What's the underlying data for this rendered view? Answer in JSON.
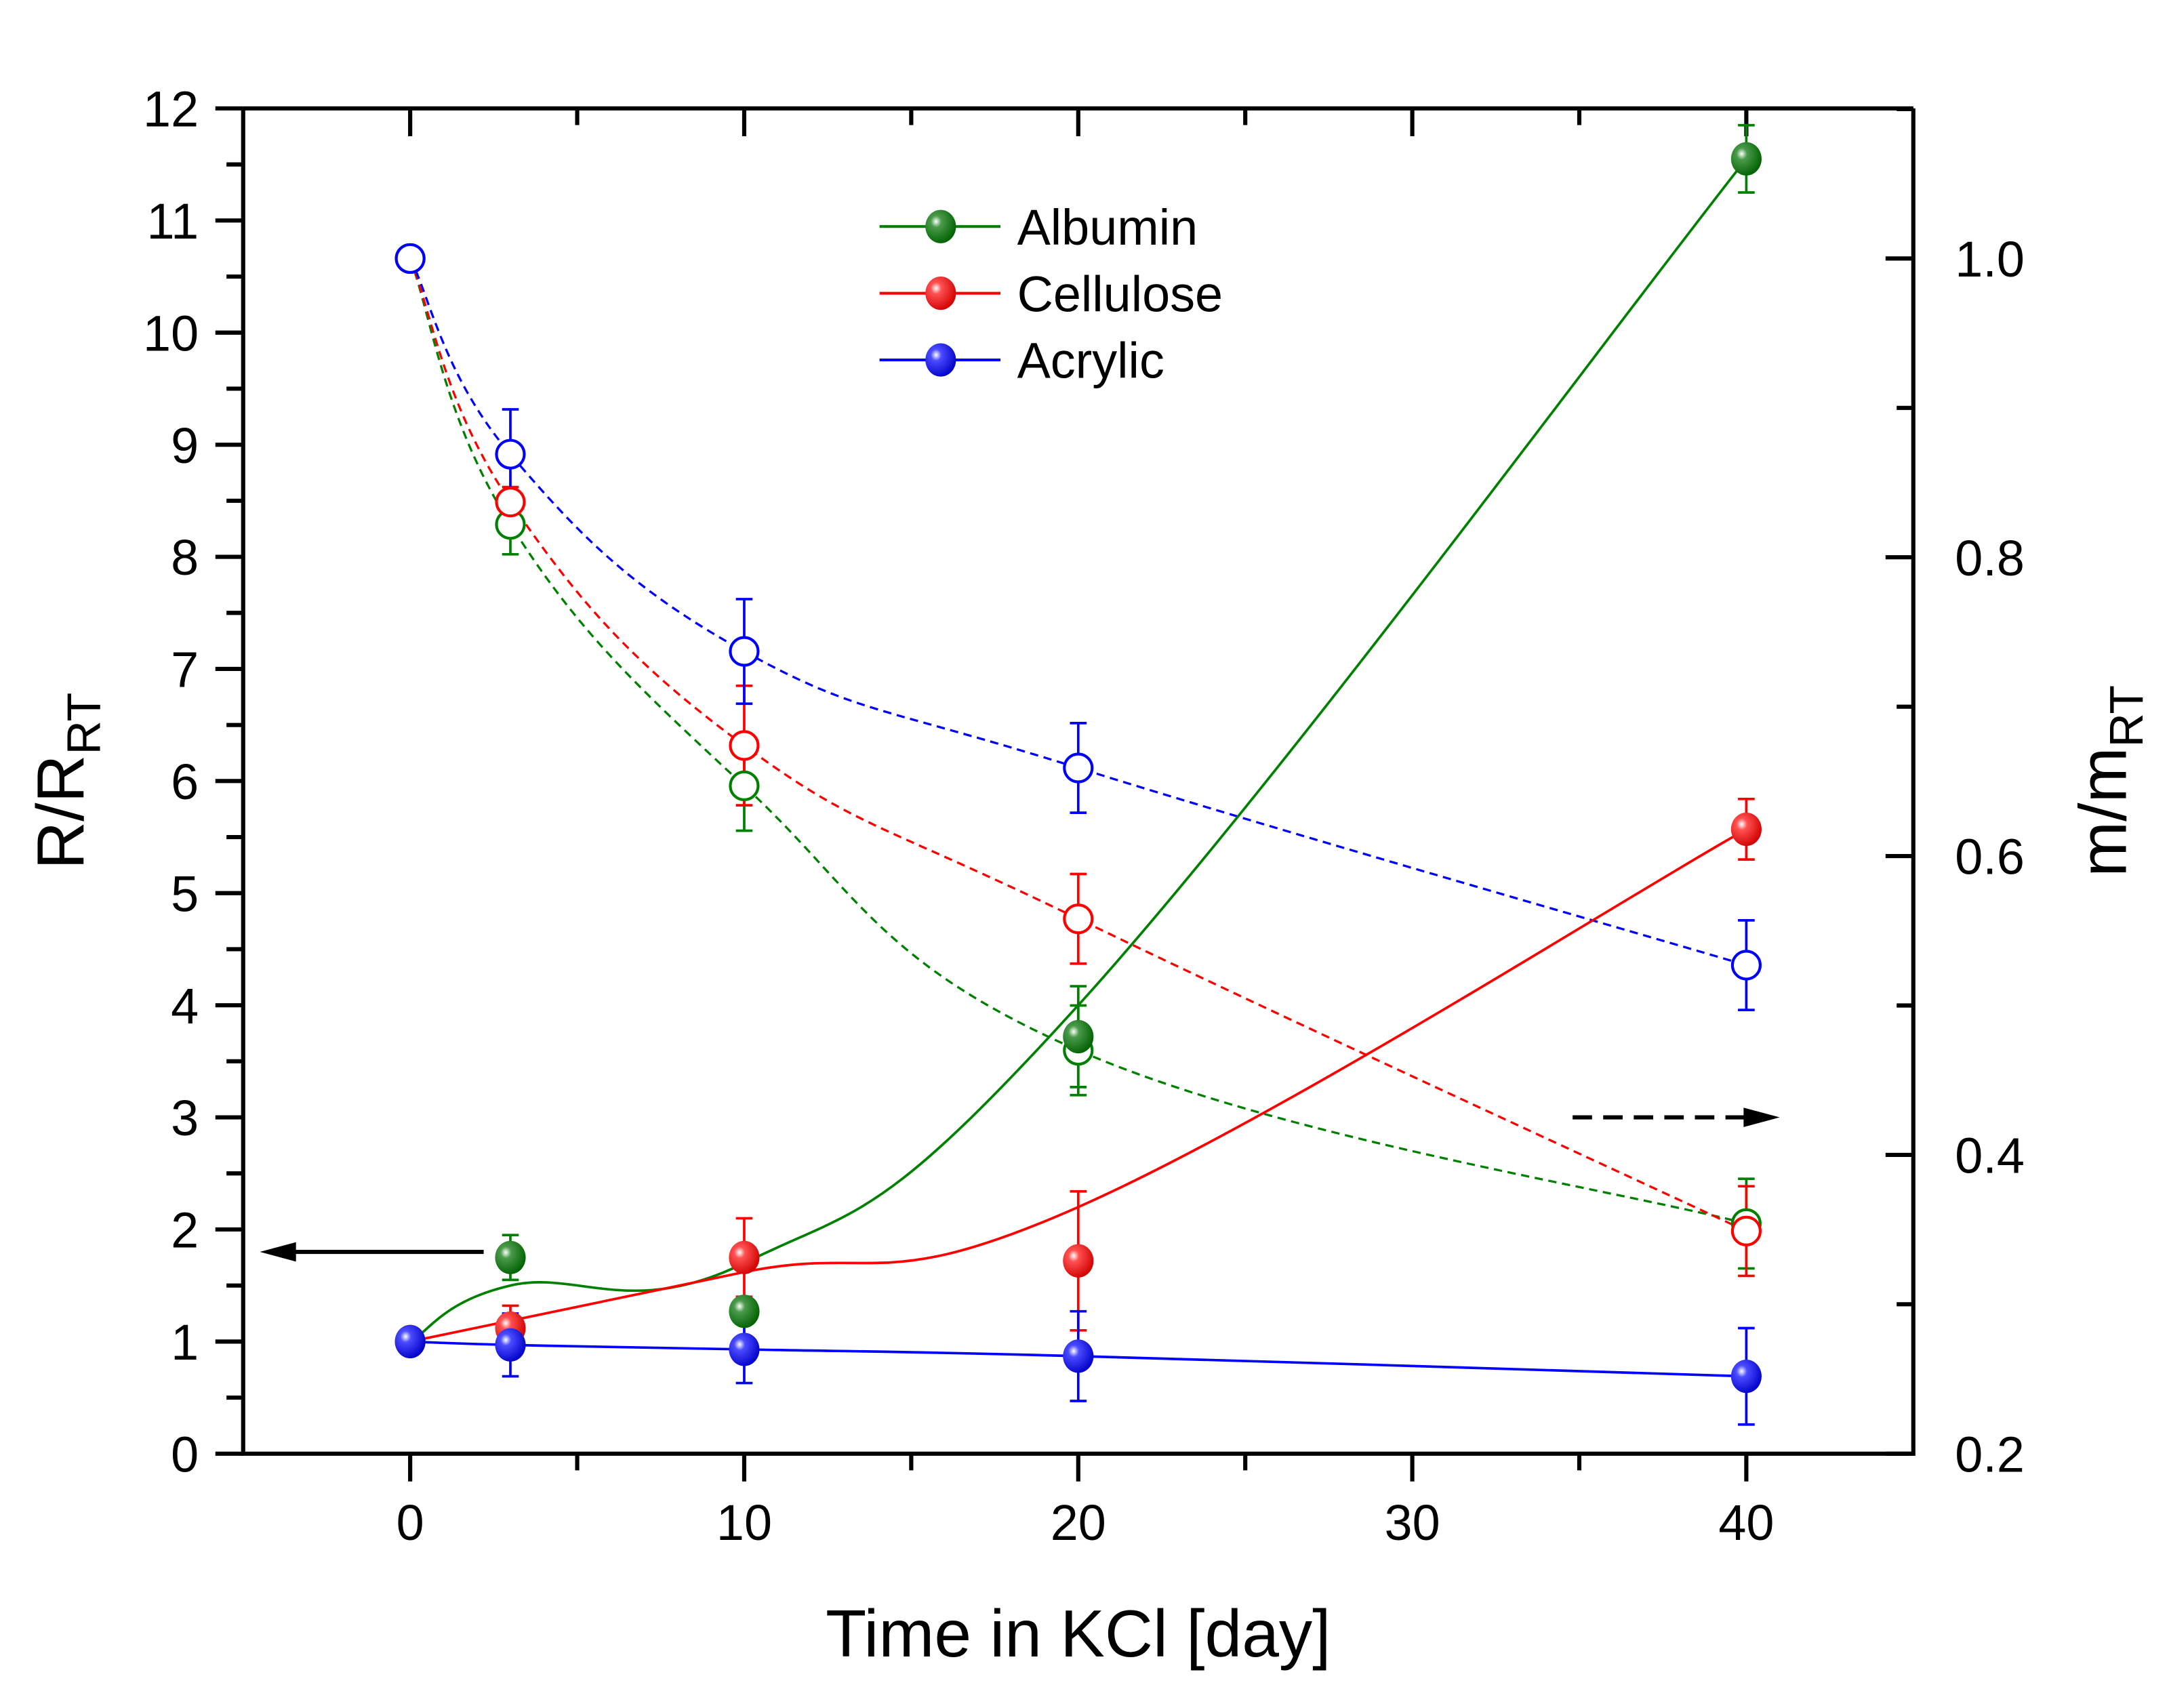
{
  "chart_data": {
    "type": "scatter",
    "xlabel": "Time in KCl [day]",
    "ylabel_left": {
      "main": "R/R",
      "sub": "RT"
    },
    "ylabel_right": {
      "main": "m/m",
      "sub": "RT"
    },
    "xlim": [
      -5,
      45
    ],
    "ylim_left": [
      0,
      12
    ],
    "ylim_right": [
      0.2,
      1.1
    ],
    "x_ticks": [
      "0",
      "10",
      "20",
      "30",
      "40"
    ],
    "y_left_ticks": [
      "0",
      "1",
      "2",
      "3",
      "4",
      "5",
      "6",
      "7",
      "8",
      "9",
      "10",
      "11",
      "12"
    ],
    "y_right_ticks": [
      "0.2",
      "0.4",
      "0.6",
      "0.8",
      "1.0"
    ],
    "grid": false,
    "legend_placement": "top-center",
    "legend": [
      "Albumin",
      "Cellulose",
      "Acrylic"
    ],
    "colors": {
      "Albumin": "#008000",
      "Cellulose": "#ff0000",
      "Acrylic": "#0000ff"
    },
    "x": [
      0,
      3,
      10,
      20,
      40
    ],
    "series_resistance_left_axis": [
      {
        "name": "Albumin",
        "values": [
          1.0,
          1.75,
          1.27,
          3.72,
          11.55
        ],
        "errors": [
          0.0,
          0.2,
          0.1,
          0.45,
          0.3
        ]
      },
      {
        "name": "Cellulose",
        "values": [
          1.0,
          1.12,
          1.75,
          1.72,
          5.57
        ],
        "errors": [
          0.0,
          0.2,
          0.35,
          0.62,
          0.27
        ]
      },
      {
        "name": "Acrylic",
        "values": [
          1.0,
          0.97,
          0.93,
          0.87,
          0.69
        ],
        "errors": [
          0.0,
          0.28,
          0.3,
          0.4,
          0.43
        ]
      }
    ],
    "series_mass_right_axis": [
      {
        "name": "Albumin",
        "values": [
          1.0,
          0.822,
          0.647,
          0.47,
          0.354
        ],
        "errors": [
          0.0,
          0.02,
          0.03,
          0.03,
          0.03
        ]
      },
      {
        "name": "Cellulose",
        "values": [
          1.0,
          0.837,
          0.674,
          0.558,
          0.349
        ],
        "errors": [
          0.0,
          0.01,
          0.04,
          0.03,
          0.03
        ]
      },
      {
        "name": "Acrylic",
        "values": [
          1.0,
          0.869,
          0.737,
          0.659,
          0.527
        ],
        "errors": [
          0.0,
          0.03,
          0.035,
          0.03,
          0.03
        ]
      }
    ],
    "annotations": [
      {
        "type": "arrow",
        "direction": "left",
        "meaning": "solid markers refer to left axis",
        "y_left": 1.8,
        "x_from": 2.2,
        "x_to": -4.5
      },
      {
        "type": "arrow",
        "direction": "right",
        "meaning": "open markers refer to right axis",
        "y_left": 3.0,
        "x_from": 34.8,
        "x_to": 41
      }
    ]
  }
}
